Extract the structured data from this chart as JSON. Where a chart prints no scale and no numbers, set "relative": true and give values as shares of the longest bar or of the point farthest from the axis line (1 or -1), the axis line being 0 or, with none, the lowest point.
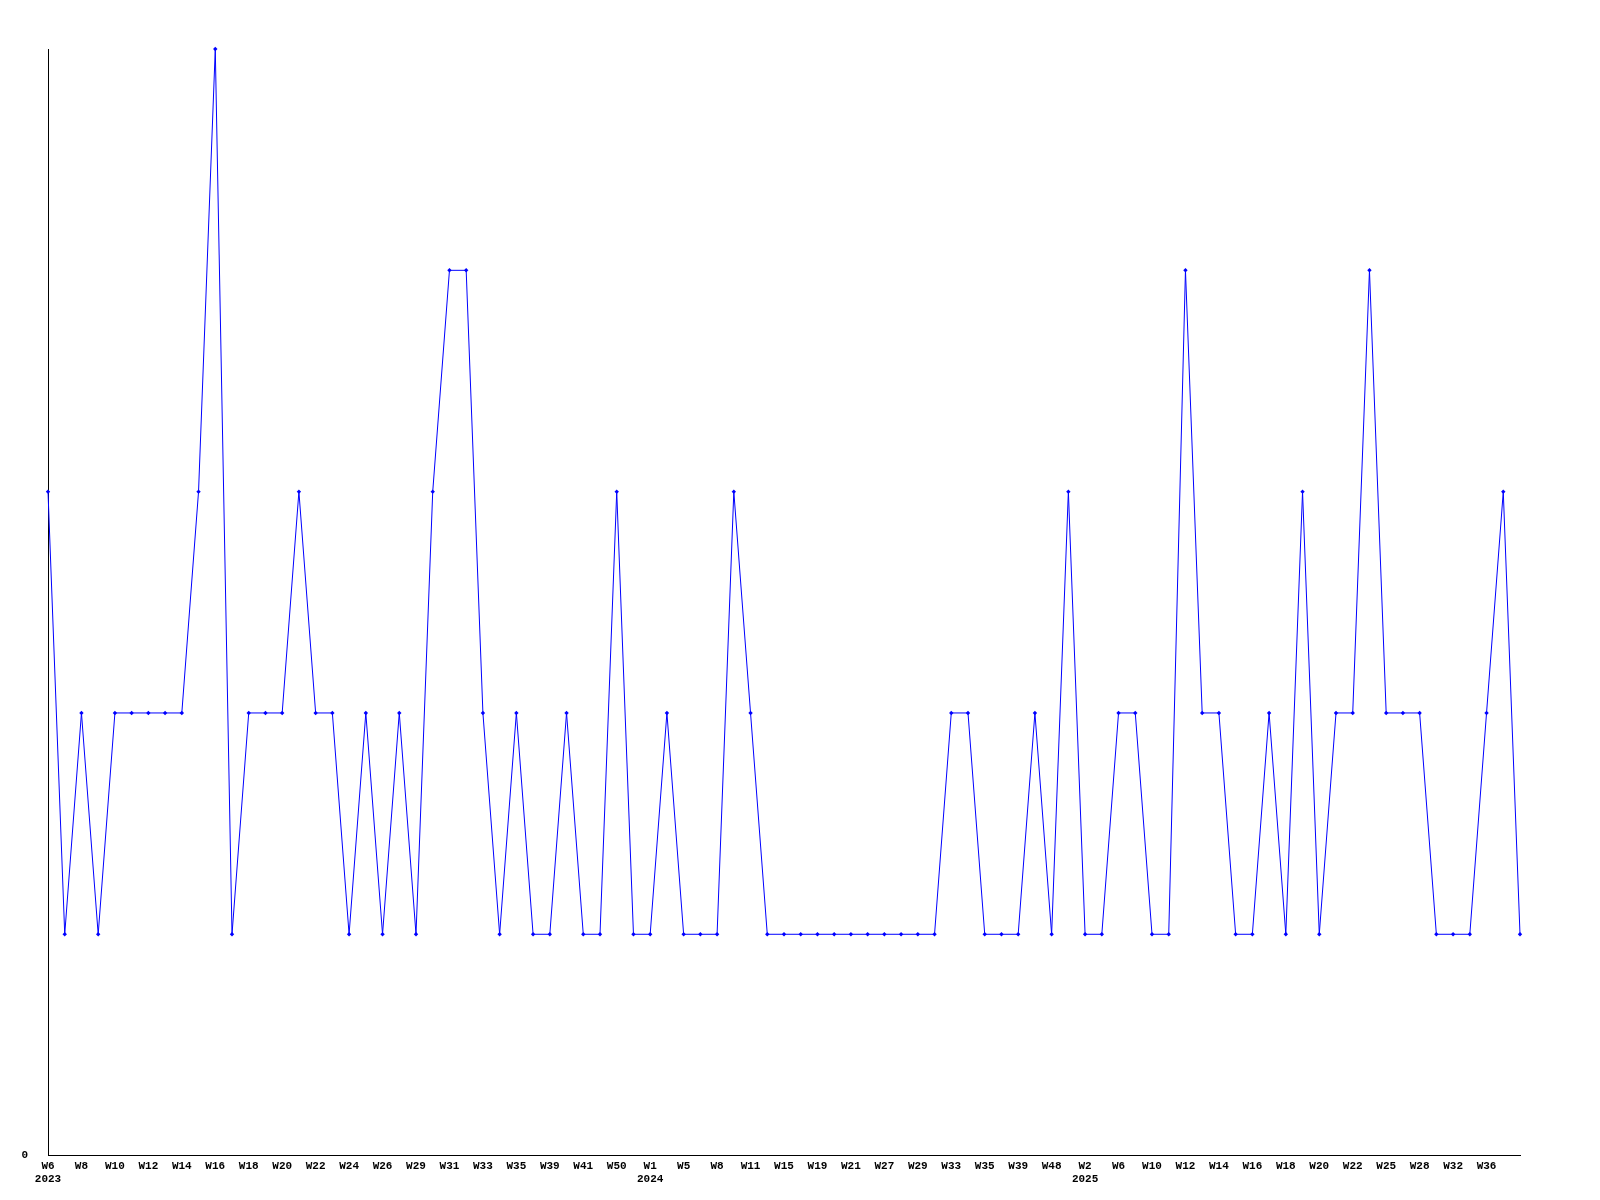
{
  "chart_data": {
    "type": "line",
    "relative": true,
    "marker": "diamond",
    "grid": false,
    "legend": false,
    "categories": [
      "W6\n2023",
      null,
      "W8",
      null,
      "W10",
      null,
      "W12",
      null,
      "W14",
      null,
      "W16",
      null,
      "W18",
      null,
      "W20",
      null,
      "W22",
      null,
      "W24",
      null,
      "W26",
      null,
      "W29",
      null,
      "W31",
      null,
      "W33",
      null,
      "W35",
      null,
      "W39",
      null,
      "W41",
      null,
      "W50",
      null,
      "W1\n2024",
      null,
      "W5",
      null,
      "W8",
      null,
      "W11",
      null,
      "W15",
      null,
      "W19",
      null,
      "W21",
      null,
      "W27",
      null,
      "W29",
      null,
      "W33",
      null,
      "W35",
      null,
      "W39",
      null,
      "W48",
      null,
      "W2\n2025",
      null,
      "W6",
      null,
      "W10",
      null,
      "W12",
      null,
      "W14",
      null,
      "W16",
      null,
      "W18",
      null,
      "W20",
      null,
      "W22",
      null,
      "W25",
      null,
      "W28",
      null,
      "W32",
      null,
      "W36",
      null,
      null
    ],
    "series": [
      {
        "color": "#0000ff",
        "values": [
          0.6,
          0.2,
          0.4,
          0.2,
          0.4,
          0.4,
          0.4,
          0.4,
          0.4,
          0.6,
          1,
          0.2,
          0.4,
          0.4,
          0.4,
          0.6,
          0.4,
          0.4,
          0.2,
          0.4,
          0.2,
          0.4,
          0.2,
          0.6,
          0.8,
          0.8,
          0.4,
          0.2,
          0.4,
          0.2,
          0.2,
          0.4,
          0.2,
          0.2,
          0.6,
          0.2,
          0.2,
          0.4,
          0.2,
          0.2,
          0.2,
          0.6,
          0.4,
          0.2,
          0.2,
          0.2,
          0.2,
          0.2,
          0.2,
          0.2,
          0.2,
          0.2,
          0.2,
          0.2,
          0.4,
          0.4,
          0.2,
          0.2,
          0.2,
          0.4,
          0.2,
          0.6,
          0.2,
          0.2,
          0.4,
          0.4,
          0.2,
          0.2,
          0.8,
          0.4,
          0.4,
          0.2,
          0.2,
          0.4,
          0.2,
          0.6,
          0.2,
          0.4,
          0.4,
          0.8,
          0.4,
          0.4,
          0.4,
          0.2,
          0.2,
          0.2,
          0.4,
          0.6,
          0.2
        ]
      }
    ],
    "annotations": [
      "0"
    ]
  }
}
